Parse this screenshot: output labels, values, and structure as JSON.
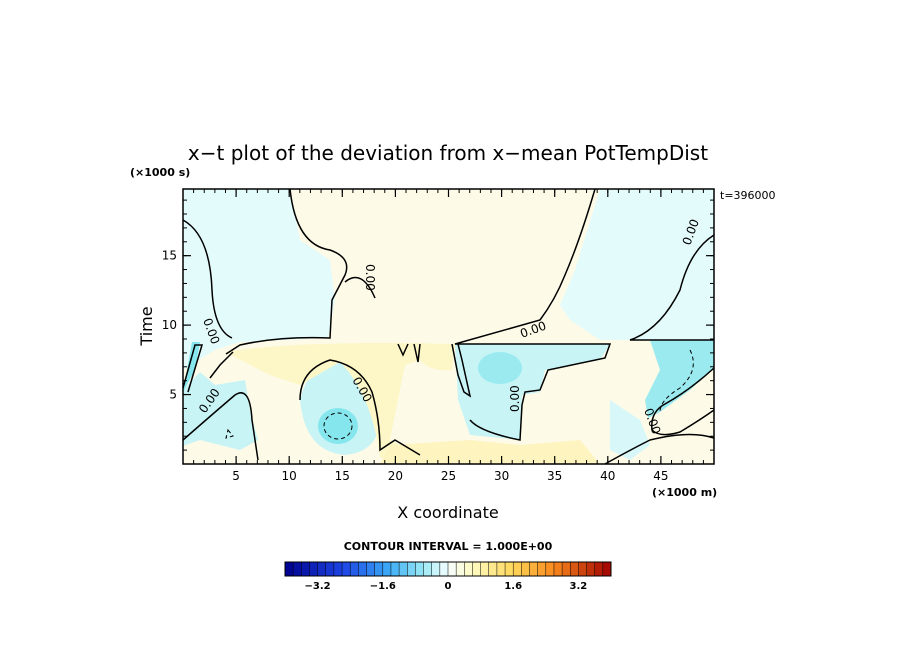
{
  "chart_data": {
    "type": "heatmap",
    "title": "x−t plot of the deviation from x−mean PotTempDist",
    "xlabel": "X coordinate",
    "ylabel": "Time",
    "x_unit": "(×1000 m)",
    "y_unit": "(×1000 s)",
    "time_stamp": "t=396000",
    "xlim": [
      0,
      50
    ],
    "ylim": [
      0,
      19.8
    ],
    "x_ticks": [
      5,
      10,
      15,
      20,
      25,
      30,
      35,
      40,
      45
    ],
    "y_ticks": [
      5,
      10,
      15
    ],
    "contour_interval_text": "CONTOUR INTERVAL = 1.000E+00",
    "contour_labels": [
      "0.00",
      "0.00",
      "0.00",
      "0.00",
      "0.00",
      "0.00",
      "0.00",
      "0.00"
    ],
    "colorbar": {
      "min": -4.0,
      "max": 4.0,
      "step": 0.2,
      "tick_labels": [
        "−3.2",
        "−1.6",
        "0",
        "1.6",
        "3.2"
      ],
      "tick_values": [
        -3.2,
        -1.6,
        0,
        1.6,
        3.2
      ]
    }
  }
}
